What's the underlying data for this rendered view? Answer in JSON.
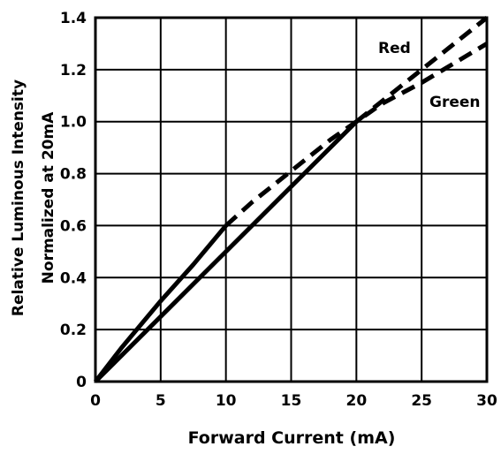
{
  "chart_data": {
    "type": "line",
    "xlabel": "Forward Current (mA)",
    "ylabel_lines": [
      "Relative Luminous Intensity",
      "Normalized at 20mA"
    ],
    "xlim": [
      0,
      30
    ],
    "ylim": [
      0,
      1.4
    ],
    "x_ticks": [
      "0",
      "5",
      "10",
      "15",
      "20",
      "25",
      "30"
    ],
    "y_ticks": [
      "0",
      "0.2",
      "0.4",
      "0.6",
      "0.8",
      "1.0",
      "1.2",
      "1.4"
    ],
    "grid": true,
    "series": [
      {
        "name": "Red",
        "x": [
          0,
          5,
          10,
          15,
          20,
          25,
          30
        ],
        "y": [
          0,
          0.25,
          0.5,
          0.75,
          1.0,
          1.2,
          1.4
        ],
        "solid_until_x": 20,
        "color": "#000000"
      },
      {
        "name": "Green",
        "x": [
          0,
          2,
          5,
          7.5,
          10,
          12,
          14,
          16,
          18,
          20,
          22,
          25,
          30
        ],
        "y": [
          0,
          0.13,
          0.31,
          0.45,
          0.6,
          0.69,
          0.77,
          0.85,
          0.93,
          1.0,
          1.07,
          1.15,
          1.3
        ],
        "solid_until_x": 10,
        "color": "#000000"
      }
    ]
  }
}
